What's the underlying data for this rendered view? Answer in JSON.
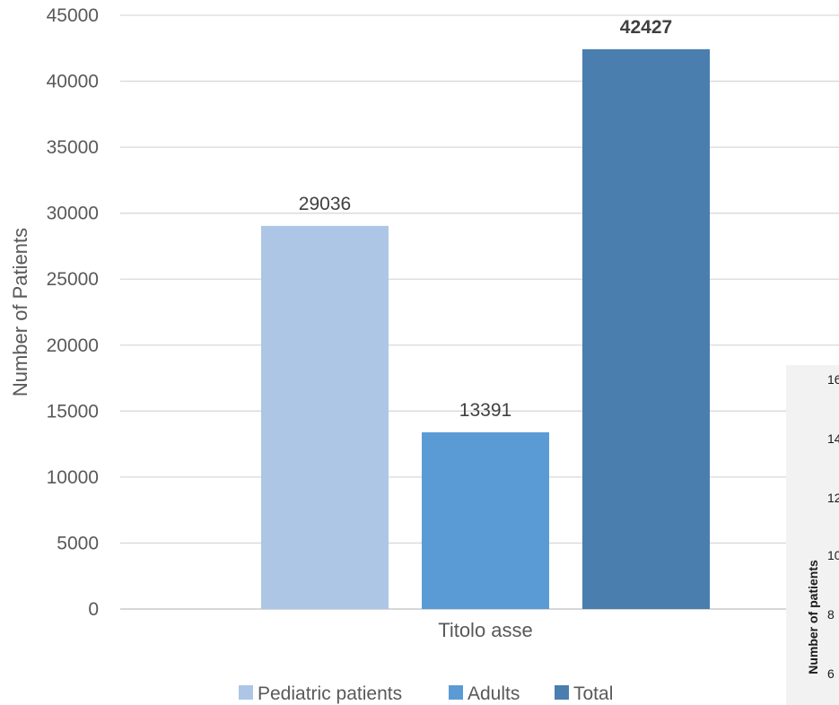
{
  "chart_data": {
    "type": "bar",
    "title": "",
    "xlabel": "Titolo asse",
    "ylabel": "Number of Patients",
    "ylim": [
      0,
      45000
    ],
    "yticks": [
      0,
      5000,
      10000,
      15000,
      20000,
      25000,
      30000,
      35000,
      40000,
      45000
    ],
    "grid": true,
    "legend_position": "bottom",
    "categories": [
      "Titolo asse"
    ],
    "series": [
      {
        "name": "Pediatric patients",
        "values": [
          29036
        ],
        "color": "#adc6e5",
        "label": "29036",
        "label_bold": false
      },
      {
        "name": "Adults",
        "values": [
          13391
        ],
        "color": "#5b9bd5",
        "label": "13391",
        "label_bold": false
      },
      {
        "name": "Total",
        "values": [
          42427
        ],
        "color": "#4a7eae",
        "label": "42427",
        "label_bold": true
      }
    ]
  },
  "inset": {
    "ylabel": "Number of patients",
    "tick_fragments": [
      "16",
      "14",
      "12",
      "10",
      "8",
      "6"
    ]
  }
}
